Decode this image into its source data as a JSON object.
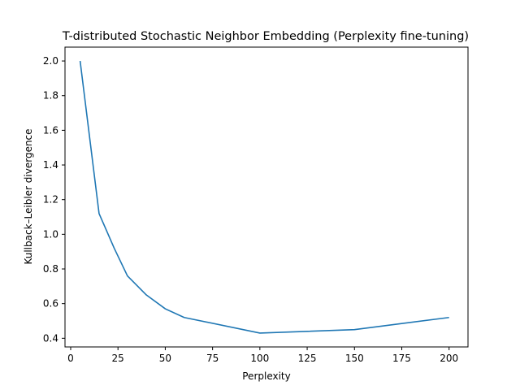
{
  "chart_data": {
    "type": "line",
    "title": "T-distributed Stochastic Neighbor Embedding (Perplexity fine-tuning)",
    "xlabel": "Perplexity",
    "ylabel": "Kullback–Leibler divergence",
    "xlim": [
      -3,
      210
    ],
    "ylim": [
      0.35,
      2.08
    ],
    "x_ticks": [
      0,
      25,
      50,
      75,
      100,
      125,
      150,
      175,
      200
    ],
    "x_tick_labels": [
      "0",
      "25",
      "50",
      "75",
      "100",
      "125",
      "150",
      "175",
      "200"
    ],
    "y_ticks": [
      0.4,
      0.6,
      0.8,
      1.0,
      1.2,
      1.4,
      1.6,
      1.8,
      2.0
    ],
    "y_tick_labels": [
      "0.4",
      "0.6",
      "0.8",
      "1.0",
      "1.2",
      "1.4",
      "1.6",
      "1.8",
      "2.0"
    ],
    "grid": false,
    "series": [
      {
        "color": "#1f77b4",
        "x": [
          5,
          15,
          23,
          30,
          40,
          50,
          60,
          100,
          150,
          200
        ],
        "y": [
          2.0,
          1.12,
          0.92,
          0.76,
          0.65,
          0.57,
          0.52,
          0.43,
          0.45,
          0.52
        ]
      }
    ]
  }
}
